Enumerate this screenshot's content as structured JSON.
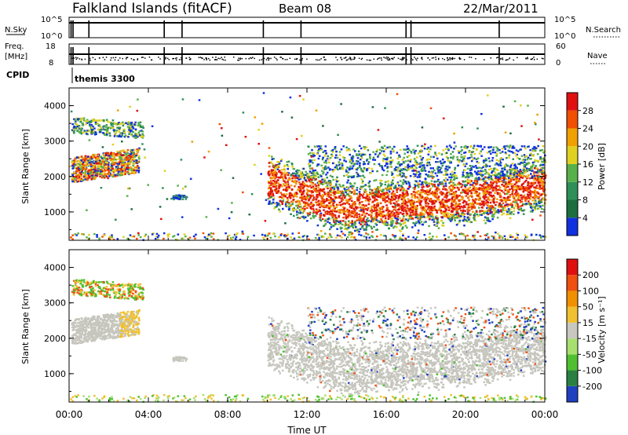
{
  "header": {
    "station": "Falkland Islands (fitACF)",
    "beam": "Beam 08",
    "date": "22/Mar/2011"
  },
  "top_panels": {
    "nsky_label": "N.Sky",
    "nsky_ticks": [
      "10^5",
      "10^0"
    ],
    "nsearch_label": "N.Search",
    "nsearch_ticks": [
      "10^5",
      "10^0"
    ],
    "freq_label_1": "Freq.",
    "freq_label_2": "[MHz]",
    "freq_ticks": [
      "18",
      "8"
    ],
    "nave_label": "Nave",
    "nave_ticks": [
      "60",
      "0"
    ],
    "cpid_label": "CPID",
    "cpid_value": "themis 3300"
  },
  "colors": {
    "power_scale": [
      "#1030e0",
      "#1d6e3e",
      "#2f8f58",
      "#58b04a",
      "#e0d020",
      "#f0a000",
      "#f05000",
      "#e01010"
    ],
    "velocity_scale": [
      "#2040c0",
      "#2a8040",
      "#50c030",
      "#a8e070",
      "#c8c8c0",
      "#f0c030",
      "#f09000",
      "#f05010",
      "#e01010"
    ],
    "gray_scatter": "#c6c6be"
  },
  "chart_data": [
    {
      "type": "heatmap",
      "name": "power",
      "ylabel": "Slant Range [km]",
      "yticks": [
        "1000",
        "2000",
        "3000",
        "4000"
      ],
      "colorbar_label": "Power [dB]",
      "colorbar_ticks": [
        "4",
        "8",
        "12",
        "16",
        "20",
        "24",
        "28"
      ],
      "ylim": [
        200,
        4500
      ]
    },
    {
      "type": "heatmap",
      "name": "velocity",
      "ylabel": "Slant Range [km]",
      "yticks": [
        "1000",
        "2000",
        "3000",
        "4000"
      ],
      "colorbar_label": "Velocity [m s⁻¹]",
      "colorbar_ticks": [
        "-200",
        "-100",
        "-50",
        "-15",
        "15",
        "50",
        "100",
        "200"
      ],
      "ylim": [
        200,
        4500
      ]
    }
  ],
  "xaxis": {
    "label": "Time UT",
    "ticks": [
      "00:00",
      "04:00",
      "08:00",
      "12:00",
      "16:00",
      "20:00",
      "00:00"
    ],
    "range_hours": [
      0,
      24
    ]
  }
}
